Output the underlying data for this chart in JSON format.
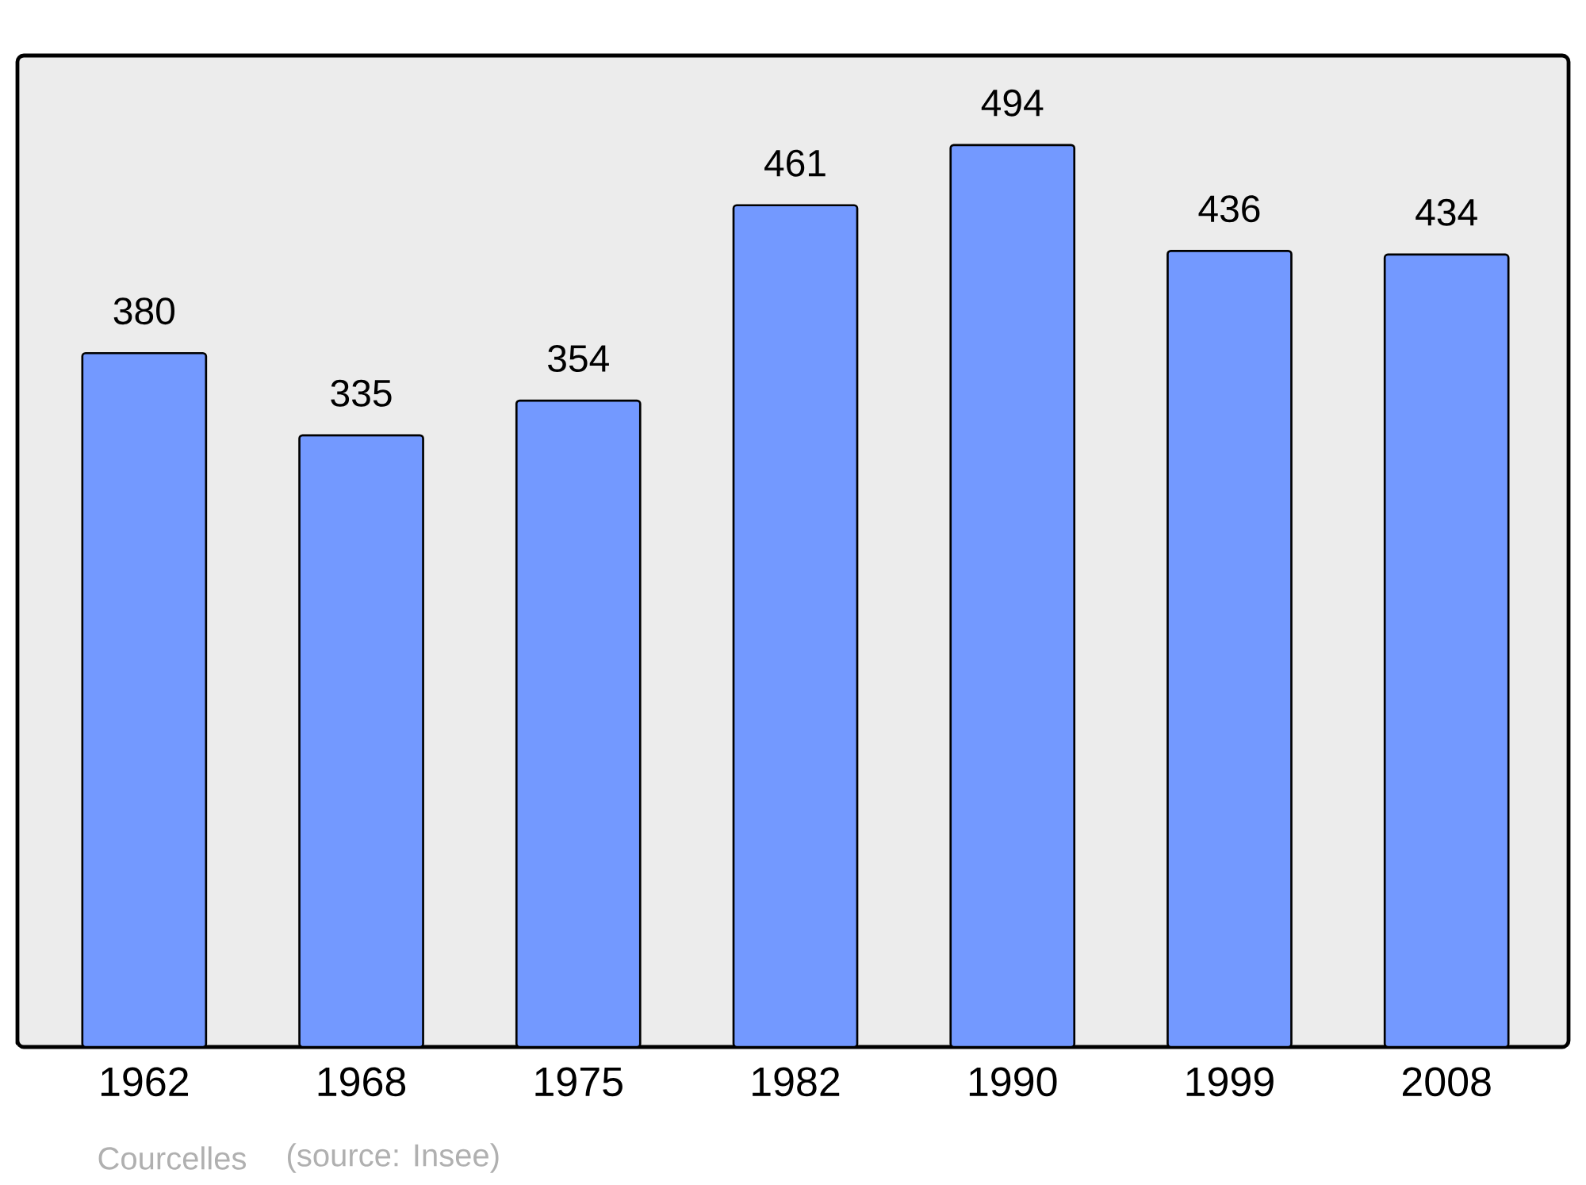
{
  "chart_data": {
    "type": "bar",
    "categories": [
      "1962",
      "1968",
      "1975",
      "1982",
      "1990",
      "1999",
      "2008"
    ],
    "values": [
      380,
      335,
      354,
      461,
      494,
      436,
      434
    ],
    "color": "#7399ff",
    "ylim": [
      0,
      543
    ],
    "data_labels": true,
    "annotations": [
      "Courcelles",
      "(source: Insee)"
    ]
  }
}
